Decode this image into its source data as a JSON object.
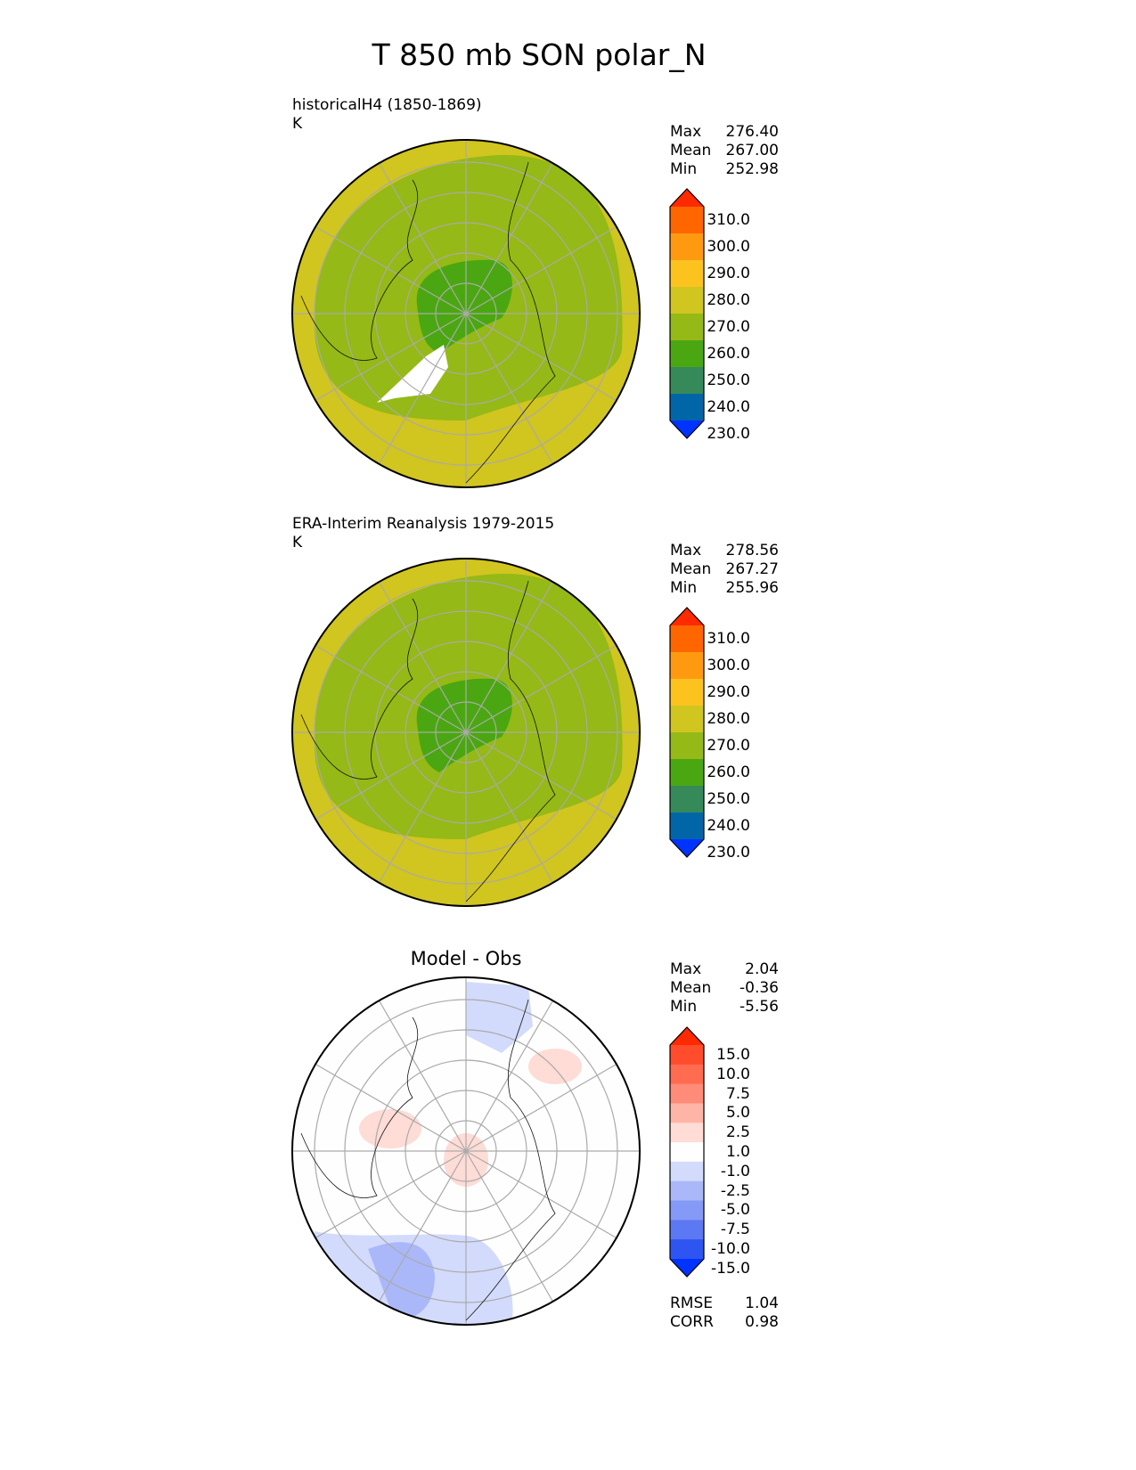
{
  "title": "T 850 mb SON polar_N",
  "panels": [
    {
      "title_line1": "historicalH4 (1850-1869)",
      "title_line2": "K",
      "stats": [
        {
          "label": "Max",
          "value": "276.40"
        },
        {
          "label": "Mean",
          "value": "267.00"
        },
        {
          "label": "Min",
          "value": "252.98"
        }
      ]
    },
    {
      "title_line1": "ERA-Interim Reanalysis 1979-2015",
      "title_line2": "K",
      "stats": [
        {
          "label": "Max",
          "value": "278.56"
        },
        {
          "label": "Mean",
          "value": "267.27"
        },
        {
          "label": "Min",
          "value": "255.96"
        }
      ]
    },
    {
      "title_line1": "Model - Obs",
      "stats": [
        {
          "label": "Max",
          "value": "2.04"
        },
        {
          "label": "Mean",
          "value": "-0.36"
        },
        {
          "label": "Min",
          "value": "-5.56"
        }
      ],
      "metrics": [
        {
          "label": "RMSE",
          "value": "1.04"
        },
        {
          "label": "CORR",
          "value": "0.98"
        }
      ]
    }
  ],
  "colorbars": {
    "abs": {
      "labels": [
        "310.0",
        "300.0",
        "290.0",
        "280.0",
        "270.0",
        "260.0",
        "250.0",
        "240.0",
        "230.0"
      ],
      "colors": [
        "#ff2a00",
        "#ff6600",
        "#ff9a10",
        "#fcc31f",
        "#d1c51f",
        "#95b916",
        "#4aa711",
        "#368a5a",
        "#0066a8",
        "#0033ff"
      ]
    },
    "diff": {
      "labels": [
        "15.0",
        "10.0",
        "7.5",
        "5.0",
        "2.5",
        "1.0",
        "-1.0",
        "-2.5",
        "-5.0",
        "-7.5",
        "-10.0",
        "-15.0"
      ],
      "colors": [
        "#ff2a00",
        "#ff4c2c",
        "#ff6c50",
        "#ff8c78",
        "#ffb4a8",
        "#ffdcd6",
        "#fefefe",
        "#d3dbfc",
        "#aab8fa",
        "#8599f6",
        "#5c78f2",
        "#2e55f2",
        "#0033ff"
      ]
    }
  }
}
